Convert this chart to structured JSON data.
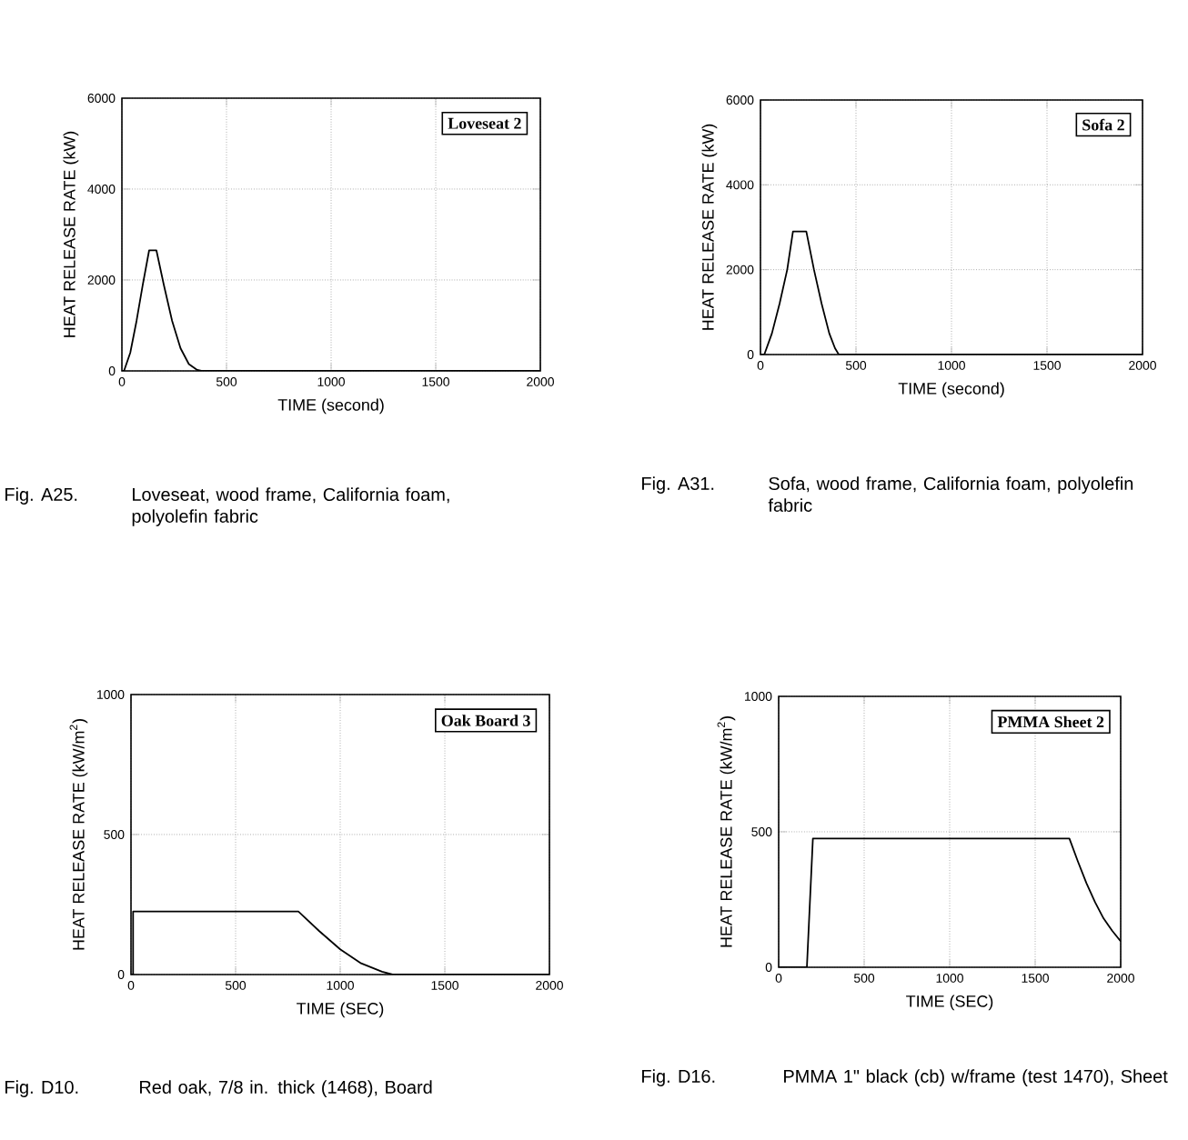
{
  "chart_data": [
    {
      "type": "line",
      "title": "Loveseat 2",
      "xlabel": "TIME (second)",
      "ylabel": "HEAT RELEASE RATE (kW)",
      "color": "#000000",
      "grid": true,
      "xlim": [
        0,
        2000
      ],
      "ylim": [
        0,
        6000
      ],
      "xticks": [
        0,
        500,
        1000,
        1500,
        2000
      ],
      "yticks": [
        0,
        2000,
        4000,
        6000
      ],
      "x": [
        0,
        10,
        40,
        70,
        100,
        130,
        165,
        200,
        240,
        280,
        320,
        360,
        380,
        2000
      ],
      "values": [
        0,
        0,
        400,
        1100,
        1900,
        2650,
        2650,
        1900,
        1100,
        500,
        150,
        20,
        0,
        0
      ],
      "annotations": [
        "Fig. A25.",
        "Loveseat, wood frame, California foam, polyolefin fabric"
      ]
    },
    {
      "type": "line",
      "title": "Sofa 2",
      "xlabel": "TIME (second)",
      "ylabel": "HEAT RELEASE RATE (kW)",
      "color": "#000000",
      "grid": true,
      "xlim": [
        0,
        2000
      ],
      "ylim": [
        0,
        6000
      ],
      "xticks": [
        0,
        500,
        1000,
        1500,
        2000
      ],
      "yticks": [
        0,
        2000,
        4000,
        6000
      ],
      "x": [
        0,
        20,
        60,
        100,
        140,
        170,
        240,
        280,
        320,
        360,
        390,
        410,
        2000
      ],
      "values": [
        0,
        0,
        500,
        1200,
        2000,
        2900,
        2900,
        2000,
        1200,
        500,
        150,
        0,
        0
      ],
      "annotations": [
        "Fig. A31.",
        "Sofa, wood frame, California foam, polyolefin fabric"
      ]
    },
    {
      "type": "line",
      "title": "Oak Board 3",
      "xlabel": "TIME (SEC)",
      "ylabel": "HEAT RELEASE RATE (kW/m$^{2}$)",
      "color": "#000000",
      "grid": true,
      "xlim": [
        0,
        2000
      ],
      "ylim": [
        0,
        1000
      ],
      "xticks": [
        0,
        500,
        1000,
        1500,
        2000
      ],
      "yticks": [
        0,
        500,
        1000
      ],
      "x": [
        0,
        10,
        10,
        800,
        900,
        1000,
        1100,
        1200,
        1250,
        2000
      ],
      "values": [
        0,
        0,
        225,
        225,
        155,
        90,
        40,
        10,
        0,
        0
      ],
      "annotations": [
        "Fig. D10.",
        "Red oak, 7/8 in. thick (1468), Board"
      ]
    },
    {
      "type": "line",
      "title": "PMMA Sheet 2",
      "xlabel": "TIME (SEC)",
      "ylabel": "HEAT RELEASE RATE (kW/m$^{2}$)",
      "color": "#000000",
      "grid": true,
      "xlim": [
        0,
        2000
      ],
      "ylim": [
        0,
        1000
      ],
      "xticks": [
        0,
        500,
        1000,
        1500,
        2000
      ],
      "yticks": [
        0,
        500,
        1000
      ],
      "x": [
        0,
        165,
        200,
        1700,
        1750,
        1800,
        1850,
        1900,
        1950,
        2000
      ],
      "values": [
        0,
        0,
        475,
        475,
        390,
        310,
        240,
        180,
        135,
        96
      ],
      "annotations": [
        "Fig. D16.",
        "PMMA 1\" black (cb) w/frame (test 1470), Sheet"
      ]
    }
  ]
}
